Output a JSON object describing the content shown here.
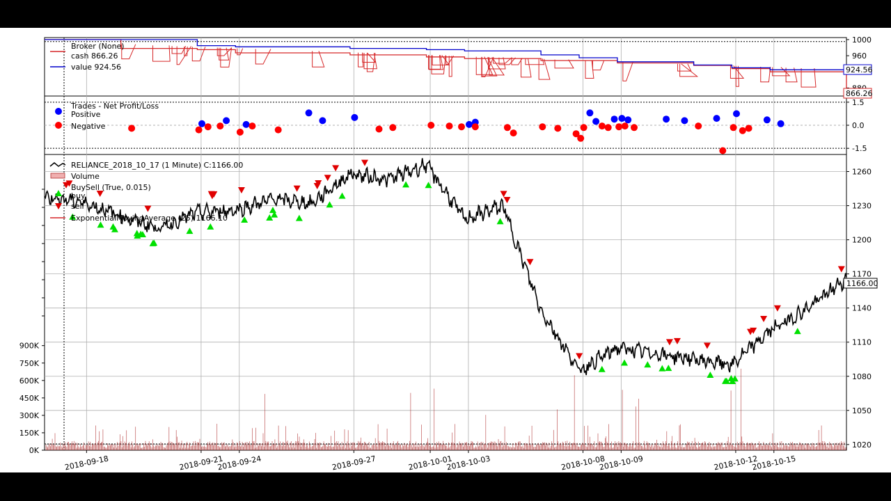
{
  "chart_data": [
    {
      "type": "line",
      "panel": "broker",
      "legend_title": "Broker (None)",
      "series": [
        {
          "name": "cash 866.26",
          "color": "#d62728",
          "x": [
            "2018-09-17",
            "2018-09-19",
            "2018-09-21",
            "2018-09-24",
            "2018-09-27",
            "2018-10-01",
            "2018-10-03",
            "2018-10-05",
            "2018-10-08",
            "2018-10-09",
            "2018-10-11",
            "2018-10-12",
            "2018-10-15",
            "2018-10-17"
          ],
          "values": [
            1000,
            978,
            975,
            967,
            962,
            957,
            953,
            948,
            948,
            942,
            936,
            928,
            920,
            866.26
          ]
        },
        {
          "name": "value 924.56",
          "color": "#0000cc",
          "x": [
            "2018-09-17",
            "2018-09-19",
            "2018-09-21",
            "2018-09-24",
            "2018-09-27",
            "2018-10-01",
            "2018-10-03",
            "2018-10-05",
            "2018-10-08",
            "2018-10-09",
            "2018-10-11",
            "2018-10-12",
            "2018-10-15",
            "2018-10-17"
          ],
          "values": [
            1000,
            1000,
            985,
            982,
            978,
            975,
            972,
            962,
            955,
            945,
            937,
            930,
            925,
            924.56
          ]
        }
      ],
      "yticks": [
        1000,
        960,
        880
      ],
      "hline": 995,
      "last_labels": [
        "924.56",
        "866.26"
      ]
    },
    {
      "type": "scatter",
      "panel": "trades",
      "legend_title": "Trades - Net Profit/Loss",
      "series": [
        {
          "name": "Positive",
          "color": "#0000ff",
          "points": [
            [
              "2018-09-21 10:00",
              0.1
            ],
            [
              "2018-09-21 14:00",
              0.3
            ],
            [
              "2018-09-24 11:00",
              0.05
            ],
            [
              "2018-09-25 15:00",
              0.8
            ],
            [
              "2018-09-26 11:00",
              0.3
            ],
            [
              "2018-09-27 10:00",
              0.5
            ],
            [
              "2018-10-03 10:00",
              0.05
            ],
            [
              "2018-10-03 11:00",
              0.2
            ],
            [
              "2018-10-08 11:00",
              0.8
            ],
            [
              "2018-10-08 12:00",
              0.25
            ],
            [
              "2018-10-08 15:00",
              0.4
            ],
            [
              "2018-10-09 10:00",
              0.45
            ],
            [
              "2018-10-09 11:00",
              0.35
            ],
            [
              "2018-10-10 11:00",
              0.4
            ],
            [
              "2018-10-10 14:00",
              0.3
            ],
            [
              "2018-10-11 13:00",
              0.45
            ],
            [
              "2018-10-12 10:00",
              0.75
            ],
            [
              "2018-10-12 15:00",
              0.35
            ],
            [
              "2018-10-15 11:00",
              0.1
            ]
          ]
        },
        {
          "name": "Negative",
          "color": "#ff0000",
          "points": [
            [
              "2018-09-19 11:00",
              -0.2
            ],
            [
              "2018-09-21 09:30",
              -0.3
            ],
            [
              "2018-09-21 11:00",
              -0.1
            ],
            [
              "2018-09-21 13:00",
              -0.05
            ],
            [
              "2018-09-24 10:00",
              -0.45
            ],
            [
              "2018-09-24 12:00",
              -0.05
            ],
            [
              "2018-09-25 10:00",
              -0.3
            ],
            [
              "2018-09-27 14:00",
              -0.25
            ],
            [
              "2018-09-28 10:00",
              -0.15
            ],
            [
              "2018-10-01 10:00",
              0.0
            ],
            [
              "2018-10-01 13:00",
              -0.05
            ],
            [
              "2018-10-01 15:00",
              -0.1
            ],
            [
              "2018-10-02 11:00",
              -0.1
            ],
            [
              "2018-10-04 10:00",
              -0.15
            ],
            [
              "2018-10-04 11:00",
              -0.5
            ],
            [
              "2018-10-05 09:30",
              -0.1
            ],
            [
              "2018-10-05 12:00",
              -0.2
            ],
            [
              "2018-10-05 15:00",
              -0.55
            ],
            [
              "2018-10-08 09:30",
              -0.85
            ],
            [
              "2018-10-08 10:00",
              -0.15
            ],
            [
              "2018-10-08 13:00",
              -0.05
            ],
            [
              "2018-10-08 14:00",
              -0.15
            ],
            [
              "2018-10-09 09:30",
              -0.1
            ],
            [
              "2018-10-09 10:30",
              -0.05
            ],
            [
              "2018-10-09 12:00",
              -0.15
            ],
            [
              "2018-10-11 10:00",
              -0.05
            ],
            [
              "2018-10-11 14:00",
              -1.65
            ],
            [
              "2018-10-12 09:30",
              -0.15
            ],
            [
              "2018-10-12 11:00",
              -0.35
            ],
            [
              "2018-10-12 12:00",
              -0.2
            ]
          ]
        }
      ],
      "yticks": [
        1.5,
        0.0,
        -1.5
      ],
      "ylim": [
        -1.9,
        1.9
      ]
    },
    {
      "type": "line",
      "panel": "price",
      "series_name": "RELIANCE_2018_10_17 (1 Minute) C:1166.00",
      "volume_label": "Volume",
      "buysell_label": "BuySell (True, 0.015)",
      "buy_label": "buy",
      "sell_label": "sell",
      "ema_label": "ExponentialMovingAverage (25) 1166.10",
      "last_label": "1166.00",
      "x": [
        "2018-09-17",
        "2018-09-18",
        "2018-09-19",
        "2018-09-20",
        "2018-09-21",
        "2018-09-24",
        "2018-09-25",
        "2018-09-26",
        "2018-09-27",
        "2018-09-28",
        "2018-10-01",
        "2018-10-03",
        "2018-10-04",
        "2018-10-05",
        "2018-10-08",
        "2018-10-09",
        "2018-10-10",
        "2018-10-11",
        "2018-10-12",
        "2018-10-15",
        "2018-10-16",
        "2018-10-17"
      ],
      "close": [
        1238,
        1233,
        1221,
        1210,
        1224,
        1226,
        1236,
        1232,
        1258,
        1253,
        1266,
        1218,
        1230,
        1138,
        1085,
        1105,
        1100,
        1095,
        1090,
        1120,
        1140,
        1166
      ],
      "yticks": [
        1260,
        1230,
        1200,
        1170,
        1140,
        1110,
        1080,
        1050,
        1020
      ],
      "volume_ticks": [
        "900K",
        "750K",
        "600K",
        "450K",
        "300K",
        "150K",
        "0K"
      ],
      "xticks": [
        "2018-09-18",
        "2018-09-21",
        "2018-09-24",
        "2018-09-27",
        "2018-10-01",
        "2018-10-03",
        "2018-10-08",
        "2018-10-09",
        "2018-10-12",
        "2018-10-15"
      ]
    }
  ],
  "colors": {
    "grid": "#b0b0b0",
    "price": "#000000",
    "buy": "#00e000",
    "sell": "#e00000",
    "volume": "#b03030",
    "cash": "#d62728",
    "value": "#0000cc"
  }
}
